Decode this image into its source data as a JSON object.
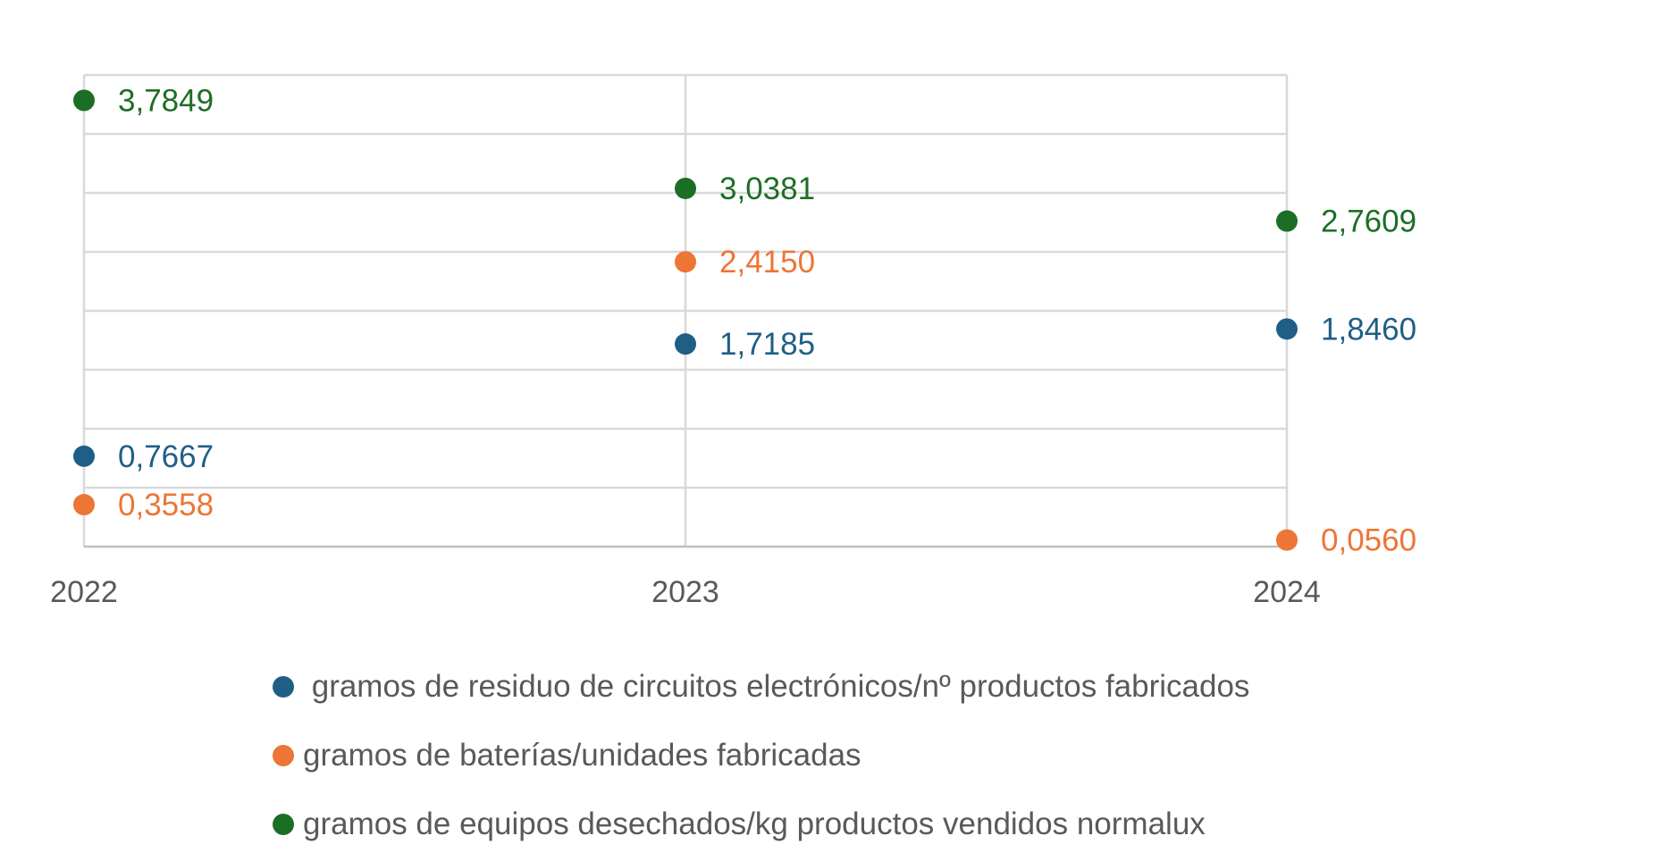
{
  "chart_data": {
    "type": "scatter",
    "categories": [
      "2022",
      "2023",
      "2024"
    ],
    "ylim": [
      0,
      4
    ],
    "grid": true,
    "legend_position": "bottom",
    "series": [
      {
        "name": " gramos de residuo de circuitos electrónicos/nº productos fabricados",
        "color": "#1f5f86",
        "values": [
          0.7667,
          1.7185,
          1.846
        ],
        "labels": [
          "0,7667",
          "1,7185",
          "1,8460"
        ]
      },
      {
        "name": "gramos de baterías/unidades fabricadas",
        "color": "#ed7535",
        "values": [
          0.3558,
          2.415,
          0.056
        ],
        "labels": [
          "0,3558",
          "2,4150",
          "0,0560"
        ]
      },
      {
        "name": "gramos de equipos desechados/kg productos vendidos normalux",
        "color": "#1d6e25",
        "values": [
          3.7849,
          3.0381,
          2.7609
        ],
        "labels": [
          "3,7849",
          "3,0381",
          "2,7609"
        ]
      }
    ]
  }
}
